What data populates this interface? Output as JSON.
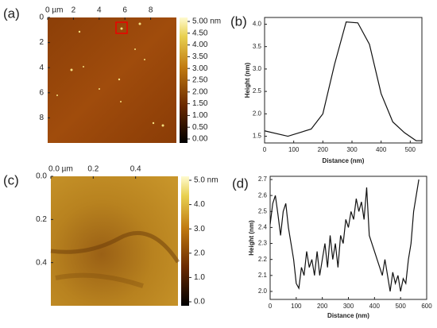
{
  "chart_data": [
    {
      "type": "image",
      "panel_label": "(a)",
      "xlim": [
        0,
        10
      ],
      "xticks": [
        {
          "value": 0,
          "label": "0 µm"
        },
        2,
        4,
        6,
        8
      ],
      "ylim": [
        0,
        10
      ],
      "yticks": [
        0,
        2,
        4,
        6,
        8
      ],
      "clim": [
        0,
        5
      ],
      "cticks": [
        {
          "value": 5,
          "label": "5.00 nm"
        },
        {
          "value": 4.5,
          "label": "4.50"
        },
        {
          "value": 4,
          "label": "4.00"
        },
        {
          "value": 3.5,
          "label": "3.50"
        },
        {
          "value": 3,
          "label": "3.00"
        },
        {
          "value": 2.5,
          "label": "2.50"
        },
        {
          "value": 2,
          "label": "2.00"
        },
        {
          "value": 1.5,
          "label": "1.50"
        },
        {
          "value": 1,
          "label": "1.00"
        },
        {
          "value": 0.5,
          "label": "0.50"
        },
        {
          "value": 0,
          "label": "0.00"
        }
      ]
    },
    {
      "type": "line",
      "panel_label": "(b)",
      "x_label": "Distance (nm)",
      "y_label": "Height (nm)",
      "x": [
        0,
        80,
        160,
        200,
        240,
        280,
        320,
        360,
        400,
        440,
        480,
        520,
        540
      ],
      "series": [
        {
          "color": "#111111",
          "values": [
            1.62,
            1.5,
            1.66,
            2.0,
            3.1,
            4.05,
            4.03,
            3.55,
            2.45,
            1.82,
            1.58,
            1.4,
            1.4
          ]
        }
      ],
      "xlim": [
        0,
        540
      ],
      "xticks": [
        0,
        100,
        200,
        300,
        400,
        500
      ],
      "ylim": [
        1.35,
        4.15
      ],
      "yticks": [
        1.5,
        {
          "value": 2,
          "label": "2.0"
        },
        2.5,
        {
          "value": 3,
          "label": "3.0"
        },
        3.5,
        {
          "value": 4,
          "label": "4.0"
        }
      ]
    },
    {
      "type": "image",
      "panel_label": "(c)",
      "xlim": [
        0,
        0.6
      ],
      "xticks": [
        {
          "value": 0,
          "label": "0.0 µm"
        },
        0.2,
        0.4
      ],
      "ylim": [
        0,
        0.6
      ],
      "yticks": [
        {
          "value": 0,
          "label": "0.0"
        },
        0.2,
        0.4
      ],
      "clim": [
        0,
        5
      ],
      "cticks": [
        {
          "value": 5,
          "label": "5.0 nm"
        },
        {
          "value": 4,
          "label": "4.0"
        },
        {
          "value": 3,
          "label": "3.0"
        },
        {
          "value": 2,
          "label": "2.0"
        },
        {
          "value": 1,
          "label": "1.0"
        },
        {
          "value": 0,
          "label": "0.0"
        }
      ]
    },
    {
      "type": "line",
      "panel_label": "(d)",
      "x_label": "Distance (nm)",
      "y_label": "Height (nm)",
      "x": [
        0,
        10,
        20,
        30,
        40,
        50,
        60,
        70,
        80,
        90,
        100,
        110,
        120,
        130,
        140,
        150,
        160,
        170,
        180,
        190,
        200,
        210,
        220,
        230,
        240,
        250,
        260,
        270,
        280,
        290,
        300,
        310,
        320,
        330,
        340,
        350,
        360,
        370,
        380,
        390,
        400,
        410,
        420,
        430,
        440,
        450,
        460,
        470,
        480,
        490,
        500,
        510,
        520,
        530,
        540,
        550,
        560,
        570
      ],
      "series": [
        {
          "color": "#111111",
          "values": [
            2.42,
            2.55,
            2.6,
            2.48,
            2.35,
            2.5,
            2.55,
            2.4,
            2.3,
            2.2,
            2.05,
            2.02,
            2.15,
            2.1,
            2.25,
            2.15,
            2.2,
            2.1,
            2.25,
            2.1,
            2.2,
            2.3,
            2.15,
            2.35,
            2.2,
            2.3,
            2.15,
            2.35,
            2.3,
            2.45,
            2.4,
            2.5,
            2.45,
            2.58,
            2.5,
            2.56,
            2.45,
            2.65,
            2.35,
            2.3,
            2.25,
            2.2,
            2.15,
            2.1,
            2.2,
            2.1,
            2.0,
            2.12,
            2.05,
            2.1,
            2.0,
            2.08,
            2.05,
            2.2,
            2.3,
            2.5,
            2.6,
            2.7
          ]
        }
      ],
      "xlim": [
        0,
        600
      ],
      "xticks": [
        0,
        100,
        200,
        300,
        400,
        500,
        600
      ],
      "ylim": [
        1.95,
        2.72
      ],
      "yticks": [
        {
          "value": 2,
          "label": "2.0"
        },
        2.1,
        2.2,
        2.3,
        2.4,
        2.5,
        2.6,
        2.7
      ]
    }
  ]
}
